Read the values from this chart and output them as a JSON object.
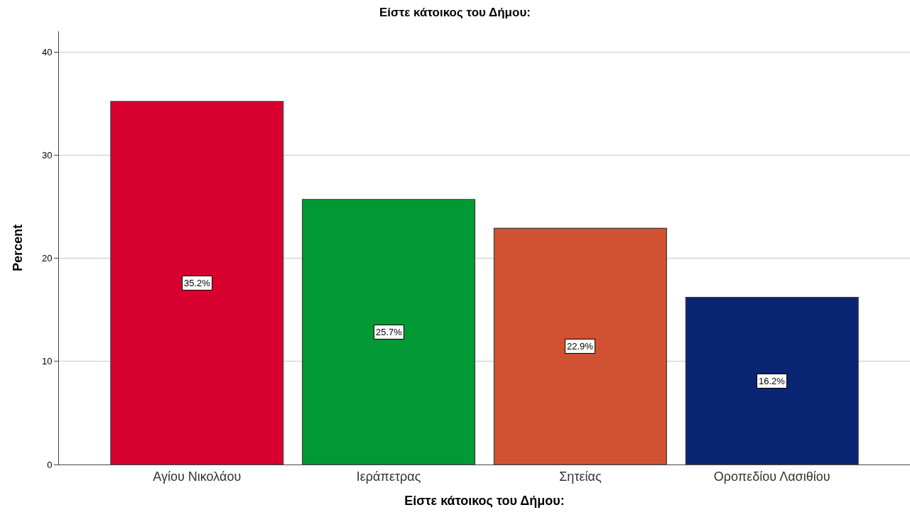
{
  "chart_data": {
    "type": "bar",
    "title": "Είστε κάτοικος του Δήμου:",
    "xlabel": "Είστε κάτοικος του Δήμου:",
    "ylabel": "Percent",
    "categories": [
      "Αγίου Νικολάου",
      "Ιεράπετρας",
      "Σητείας",
      "Οροπεδίου Λασιθίου"
    ],
    "values": [
      35.2,
      25.7,
      22.9,
      16.2
    ],
    "colors": [
      "#d7002e",
      "#019934",
      "#d15232",
      "#0a2573"
    ],
    "value_labels": [
      "35.2%",
      "25.7%",
      "22.9%",
      "16.2%"
    ],
    "ylim": [
      0,
      42
    ],
    "yticks": [
      0,
      10,
      20,
      30,
      40
    ],
    "grid": "y"
  }
}
